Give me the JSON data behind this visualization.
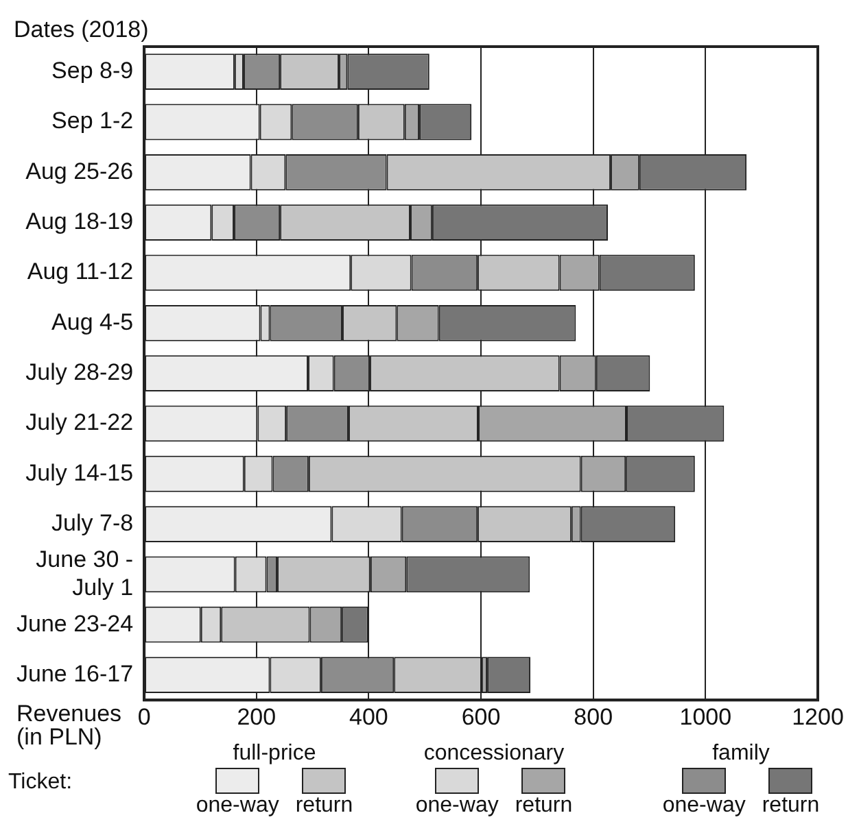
{
  "chart_data": {
    "type": "bar",
    "orientation": "horizontal",
    "stacked": true,
    "ylabel": "Dates (2018)",
    "xlabel": "Revenues (in PLN)",
    "legend_title": "Ticket:",
    "annotations": [
      "full-price",
      "concessionary",
      "family"
    ],
    "categories": [
      "Sep 8-9",
      "Sep 1-2",
      "Aug 25-26",
      "Aug 18-19",
      "Aug 11-12",
      "Aug 4-5",
      "July 28-29",
      "July 21-22",
      "July 14-15",
      "July 7-8",
      "June 30 - July 1",
      "June 23-24",
      "June 16-17"
    ],
    "series": [
      {
        "name": "one-way",
        "color": "#ececec",
        "values": [
          161,
          206,
          190,
          120,
          368,
          207,
          292,
          202,
          178,
          334,
          162,
          101,
          224
        ]
      },
      {
        "name": "one-way",
        "color": "#d9d9d9",
        "values": [
          16,
          57,
          62,
          40,
          108,
          17,
          46,
          51,
          51,
          125,
          56,
          36,
          91
        ]
      },
      {
        "name": "one-way",
        "color": "#8c8c8c",
        "values": [
          65,
          118,
          180,
          82,
          118,
          129,
          64,
          111,
          64,
          135,
          19,
          0,
          130
        ]
      },
      {
        "name": "return",
        "color": "#c4c4c4",
        "values": [
          105,
          83,
          399,
          232,
          146,
          97,
          338,
          231,
          485,
          167,
          166,
          158,
          156
        ]
      },
      {
        "name": "return",
        "color": "#a6a6a6",
        "values": [
          15,
          26,
          51,
          39,
          71,
          75,
          65,
          264,
          80,
          17,
          64,
          57,
          10
        ]
      },
      {
        "name": "return",
        "color": "#767676",
        "values": [
          146,
          93,
          191,
          313,
          170,
          244,
          96,
          174,
          123,
          168,
          220,
          47,
          77
        ]
      }
    ],
    "xlim": [
      0,
      1200
    ],
    "xticks": [
      0,
      200,
      400,
      600,
      800,
      1000,
      1200
    ],
    "grid": "x",
    "legend": "bottom"
  }
}
